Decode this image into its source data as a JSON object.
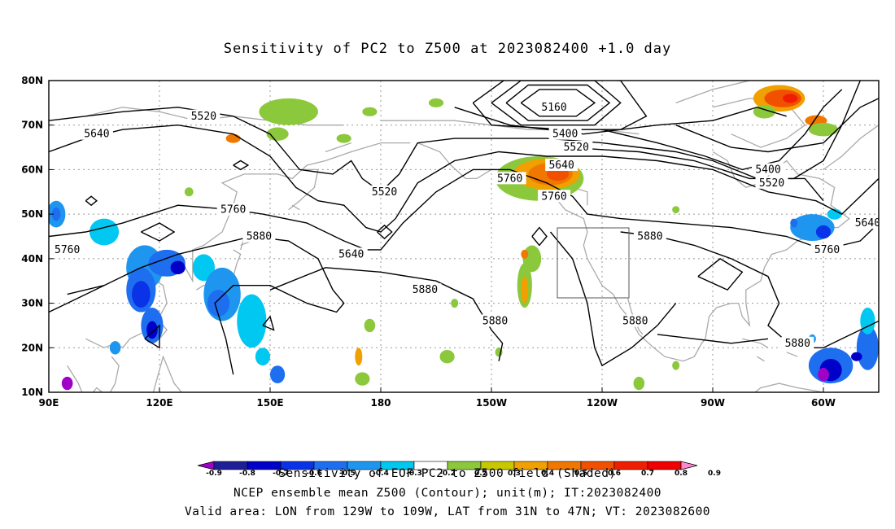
{
  "title": "Sensitivity of PC2 to Z500 at 2023082400 +1.0 day",
  "map": {
    "lon_labels": [
      "90E",
      "120E",
      "150E",
      "180",
      "150W",
      "120W",
      "90W",
      "60W"
    ],
    "lat_labels": [
      "80N",
      "70N",
      "60N",
      "50N",
      "40N",
      "30N",
      "20N",
      "10N"
    ],
    "lon_range_deg_east": [
      90,
      315
    ],
    "lat_range_deg": [
      10,
      80
    ]
  },
  "contour_labels": [
    {
      "value": "5520",
      "lon": 132,
      "lat": 72
    },
    {
      "value": "5640",
      "lon": 103,
      "lat": 68
    },
    {
      "value": "5160",
      "lon": 227,
      "lat": 74
    },
    {
      "value": "5400",
      "lon": 230,
      "lat": 68
    },
    {
      "value": "5520",
      "lon": 233,
      "lat": 65
    },
    {
      "value": "5640",
      "lon": 229,
      "lat": 61
    },
    {
      "value": "5760",
      "lon": 215,
      "lat": 58
    },
    {
      "value": "5520",
      "lon": 181,
      "lat": 55
    },
    {
      "value": "5760",
      "lon": 227,
      "lat": 54
    },
    {
      "value": "5760",
      "lon": 140,
      "lat": 51
    },
    {
      "value": "5880",
      "lon": 147,
      "lat": 45
    },
    {
      "value": "5760",
      "lon": 95,
      "lat": 42
    },
    {
      "value": "5640",
      "lon": 172,
      "lat": 41
    },
    {
      "value": "5880",
      "lon": 253,
      "lat": 45
    },
    {
      "value": "5400",
      "lon": 285,
      "lat": 60
    },
    {
      "value": "5520",
      "lon": 286,
      "lat": 57
    },
    {
      "value": "5640",
      "lon": 312,
      "lat": 48
    },
    {
      "value": "5760",
      "lon": 301,
      "lat": 42
    },
    {
      "value": "5880",
      "lon": 192,
      "lat": 33
    },
    {
      "value": "5880",
      "lon": 211,
      "lat": 26
    },
    {
      "value": "5880",
      "lon": 249,
      "lat": 26
    },
    {
      "value": "5880",
      "lon": 293,
      "lat": 21
    }
  ],
  "valid_box": {
    "lon_range": [
      "129W",
      "109W"
    ],
    "lat_range": [
      "31N",
      "47N"
    ]
  },
  "colorbar": {
    "ticks": [
      "-0.9",
      "-0.8",
      "-0.7",
      "-0.6",
      "-0.5",
      "-0.4",
      "-0.3",
      "-0.2",
      "0.2",
      "0.3",
      "0.4",
      "0.5",
      "0.6",
      "0.7",
      "0.8",
      "0.9"
    ],
    "colors": [
      "#a000c8",
      "#1e1e96",
      "#0000c8",
      "#0a32e6",
      "#1e6ef0",
      "#1e96f0",
      "#00c8f0",
      "#ffffff",
      "#8cc83c",
      "#c8c800",
      "#f0a000",
      "#f07800",
      "#f05000",
      "#f01e00",
      "#f00000",
      "#ff88cc"
    ]
  },
  "footer": {
    "line1": "Sensitivity of EOF PC2 to Z500 field (Shaded)",
    "line2": "NCEP ensemble mean Z500 (Contour); unit(m); IT:2023082400",
    "line3": "Valid area: LON from 129W to 109W, LAT from 31N to 47N; VT: 2023082600"
  }
}
